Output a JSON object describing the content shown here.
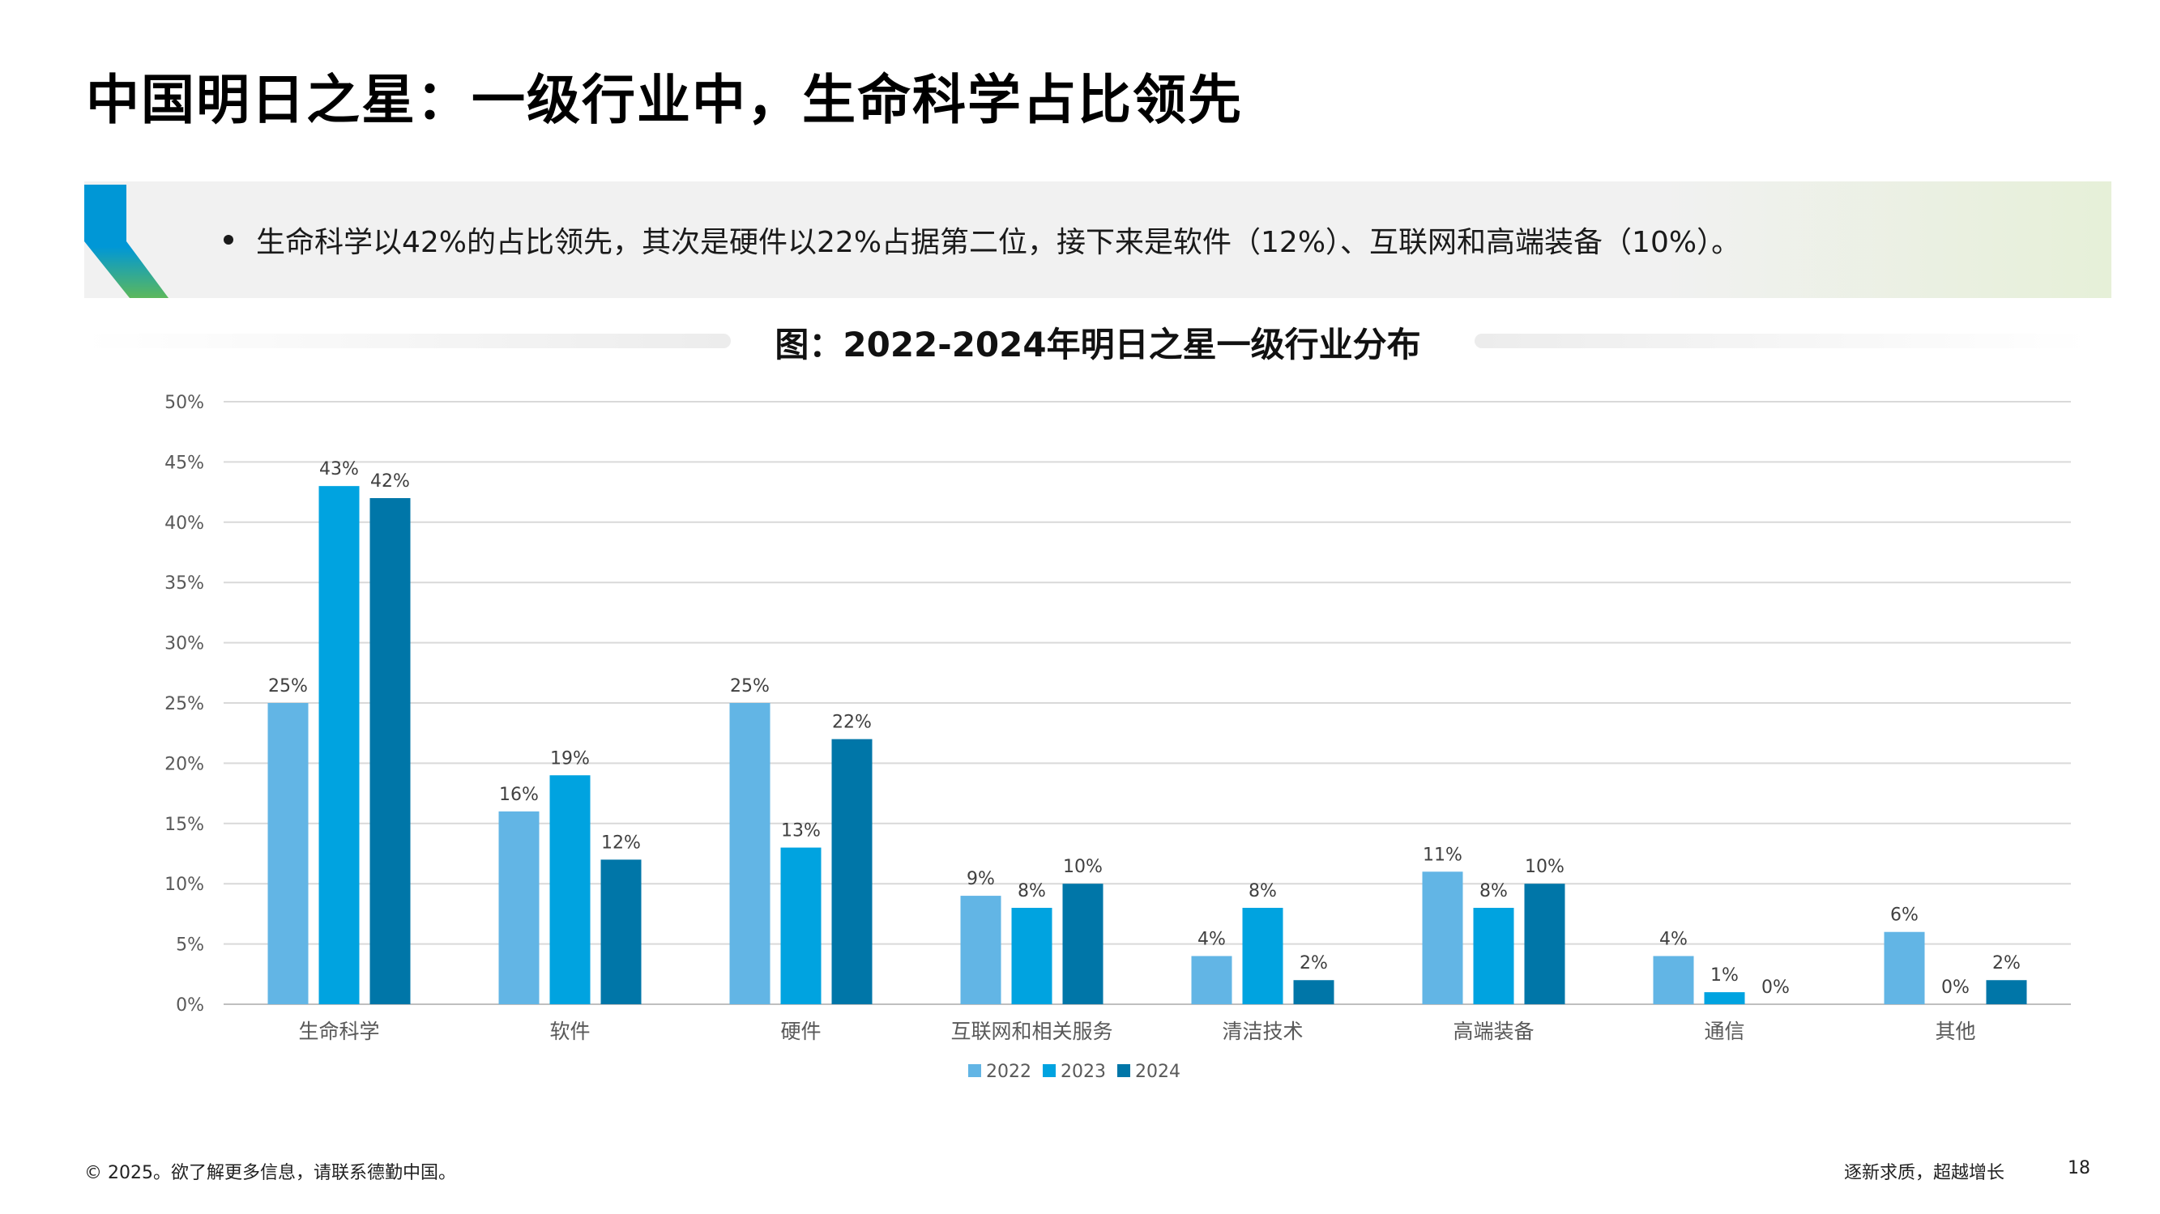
{
  "page": {
    "title": "中国明日之星：一级行业中，生命科学占比领先",
    "bullet": "生命科学以42%的占比领先，其次是硬件以22%占据第二位，接下来是软件（12%）、互联网和高端装备（10%）。"
  },
  "footer": {
    "left": "© 2025。欲了解更多信息，请联系德勤中国。",
    "right": "逐新求质，超越增长",
    "page_number": "18"
  },
  "colors": {
    "series_2022": "#62b5e5",
    "series_2023": "#00a3e0",
    "series_2024": "#0076a8",
    "banner_accent_top": "#0097d6",
    "banner_accent_bottom": "#5cb85c"
  },
  "chart_data": {
    "type": "bar",
    "title": "图：2022-2024年明日之星一级行业分布",
    "categories": [
      "生命科学",
      "软件",
      "硬件",
      "互联网和相关服务",
      "清洁技术",
      "高端装备",
      "通信",
      "其他"
    ],
    "series": [
      {
        "name": "2022",
        "values": [
          25,
          16,
          25,
          9,
          4,
          11,
          4,
          6
        ],
        "labels": [
          "25%",
          "16%",
          "25%",
          "9%",
          "4%",
          "11%",
          "4%",
          "6%"
        ]
      },
      {
        "name": "2023",
        "values": [
          43,
          19,
          13,
          8,
          8,
          8,
          1,
          0
        ],
        "labels": [
          "43%",
          "19%",
          "13%",
          "8%",
          "8%",
          "8%",
          "1%",
          "0%"
        ]
      },
      {
        "name": "2024",
        "values": [
          42,
          12,
          22,
          10,
          2,
          10,
          0,
          2
        ],
        "labels": [
          "42%",
          "12%",
          "22%",
          "10%",
          "2%",
          "10%",
          "0%",
          "2%"
        ]
      }
    ],
    "yticks": [
      "0%",
      "5%",
      "10%",
      "15%",
      "20%",
      "25%",
      "30%",
      "35%",
      "40%",
      "45%",
      "50%"
    ],
    "ylim": [
      0,
      50
    ],
    "grid": true,
    "legend_position": "bottom-center"
  }
}
